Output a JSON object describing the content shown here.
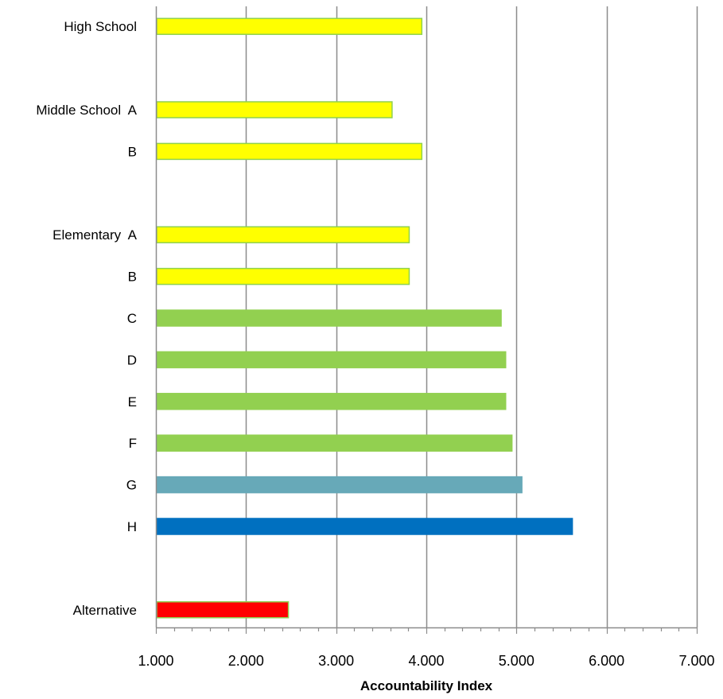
{
  "chart_data": {
    "type": "bar",
    "orientation": "horizontal",
    "xlabel": "Accountability Index",
    "xlim": [
      1.0,
      7.0
    ],
    "x_ticks": [
      "1.000",
      "2.000",
      "3.000",
      "4.000",
      "5.000",
      "6.000",
      "7.000"
    ],
    "grid": "vertical major gridlines",
    "legend": "none",
    "rows": [
      {
        "slot": 0,
        "label": "High School",
        "value": 3.95,
        "color": "#ffff00",
        "outline": "#8fd14f"
      },
      {
        "slot": 2,
        "label": "Middle School  A",
        "value": 3.62,
        "color": "#ffff00",
        "outline": "#8fd14f"
      },
      {
        "slot": 3,
        "label": "B",
        "value": 3.95,
        "color": "#ffff00",
        "outline": "#8fd14f"
      },
      {
        "slot": 5,
        "label": "Elementary  A",
        "value": 3.81,
        "color": "#ffff00",
        "outline": "#8fd14f"
      },
      {
        "slot": 6,
        "label": "B",
        "value": 3.81,
        "color": "#ffff00",
        "outline": "#8fd14f"
      },
      {
        "slot": 7,
        "label": "C",
        "value": 4.83,
        "color": "#92d050",
        "outline": "#92d050"
      },
      {
        "slot": 8,
        "label": "D",
        "value": 4.88,
        "color": "#92d050",
        "outline": "#92d050"
      },
      {
        "slot": 9,
        "label": "E",
        "value": 4.88,
        "color": "#92d050",
        "outline": "#92d050"
      },
      {
        "slot": 10,
        "label": "F",
        "value": 4.95,
        "color": "#92d050",
        "outline": "#92d050"
      },
      {
        "slot": 11,
        "label": "G",
        "value": 5.06,
        "color": "#67a9b8",
        "outline": "#67a9b8"
      },
      {
        "slot": 12,
        "label": "H",
        "value": 5.62,
        "color": "#0070c0",
        "outline": "#0070c0"
      },
      {
        "slot": 14,
        "label": "Alternative",
        "value": 2.47,
        "color": "#ff0000",
        "outline": "#8fd14f"
      }
    ]
  }
}
